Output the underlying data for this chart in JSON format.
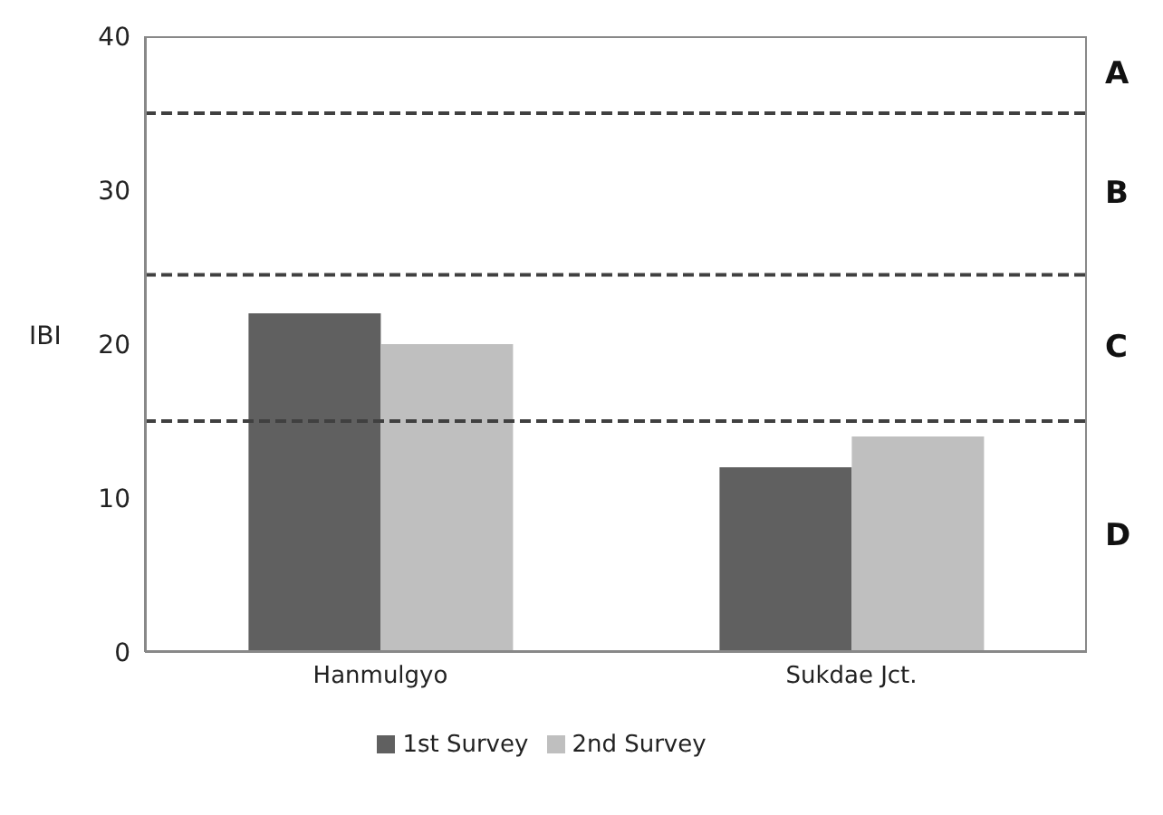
{
  "chart_data": {
    "type": "bar",
    "ylabel": "IBI",
    "categories": [
      "Hanmulgyo",
      "Sukdae Jct."
    ],
    "series": [
      {
        "name": "1st Survey",
        "color": "#606060",
        "values": [
          22,
          12
        ]
      },
      {
        "name": "2nd Survey",
        "color": "#bfbfbf",
        "values": [
          20,
          14
        ]
      }
    ],
    "ylim": [
      0,
      40
    ],
    "yticks": [
      0,
      10,
      20,
      30,
      40
    ],
    "legend": "bottom",
    "ref_lines": [
      {
        "axis": "y",
        "value": 35,
        "color": "#404040",
        "line_style": "dashed"
      },
      {
        "axis": "y",
        "value": 24.5,
        "color": "#404040",
        "line_style": "dashed"
      },
      {
        "axis": "y",
        "value": 15,
        "color": "#404040",
        "line_style": "dashed"
      }
    ],
    "annotations": [
      "A",
      "B",
      "C",
      "D"
    ]
  }
}
